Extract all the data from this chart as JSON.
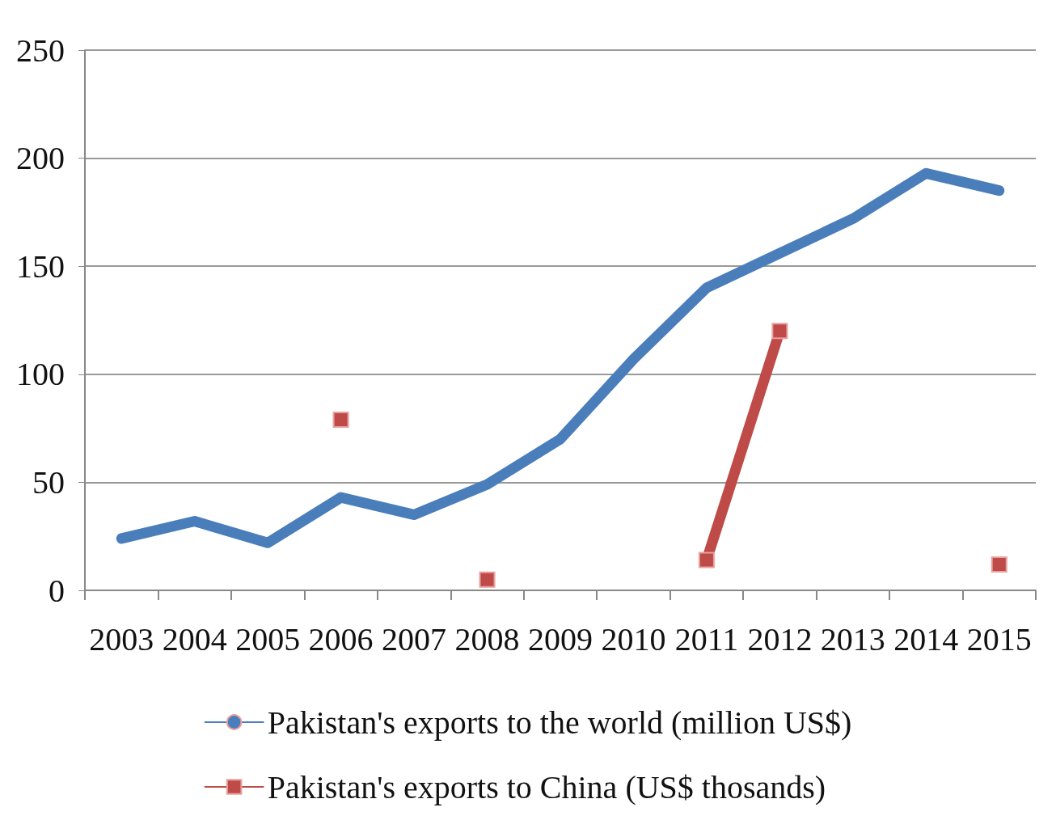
{
  "chart_data": {
    "type": "line",
    "categories": [
      "2003",
      "2004",
      "2005",
      "2006",
      "2007",
      "2008",
      "2009",
      "2010",
      "2011",
      "2012",
      "2013",
      "2014",
      "2015"
    ],
    "series": [
      {
        "name": "Pakistan's exports to the world (million US$)",
        "color": "#4a7ebb",
        "marker": "none",
        "values": [
          24,
          32,
          22,
          43,
          35,
          49,
          70,
          107,
          140,
          156,
          172,
          193,
          185
        ]
      },
      {
        "name": "Pakistan's exports to China (US$ thosands)",
        "color": "#be4b48",
        "marker": "square",
        "values": [
          null,
          null,
          null,
          79,
          null,
          5,
          null,
          null,
          14,
          120,
          null,
          null,
          12
        ]
      }
    ],
    "ylim": [
      0,
      250
    ],
    "yticks": [
      0,
      50,
      100,
      150,
      200,
      250
    ],
    "grid": "y",
    "legend": "bottom",
    "line_style": "solid"
  }
}
